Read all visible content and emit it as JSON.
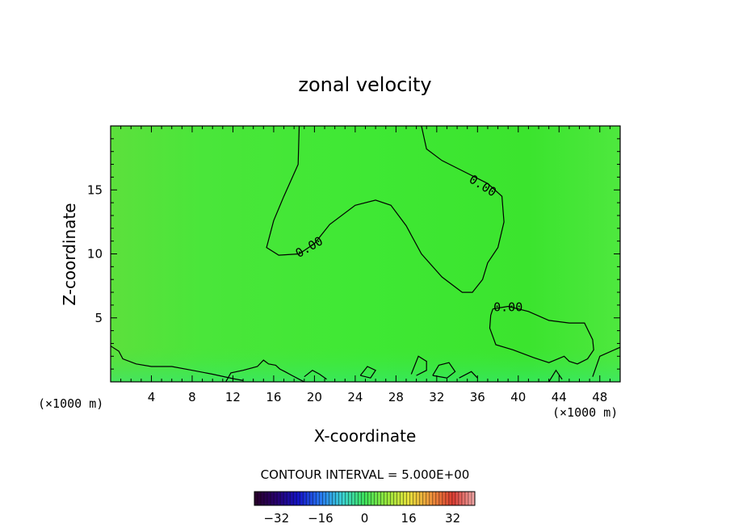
{
  "chart_data": {
    "type": "heatmap",
    "title": "zonal velocity",
    "xlabel": "X-coordinate",
    "ylabel": "Z-coordinate",
    "x_unit": "(×1000 m)",
    "z_unit": "(×1000 m)",
    "xlim": [
      0,
      50
    ],
    "ylim": [
      0,
      20
    ],
    "x_ticks": [
      "4",
      "8",
      "12",
      "16",
      "20",
      "24",
      "28",
      "32",
      "36",
      "40",
      "44",
      "48"
    ],
    "y_ticks": [
      "5",
      "10",
      "15"
    ],
    "contour_label": "0.00",
    "contour_interval_text": "CONTOUR INTERVAL = 5.000E+00",
    "colorbar_ticks": [
      "−32",
      "−16",
      "0",
      "16",
      "32"
    ],
    "colorbar_range": [
      -40,
      40
    ],
    "field_level": 0,
    "contours": [
      {
        "level": 0,
        "points": [
          [
            18.5,
            20
          ],
          [
            18.4,
            17
          ],
          [
            17,
            14.5
          ],
          [
            16,
            12.6
          ],
          [
            15.3,
            10.5
          ],
          [
            16.5,
            9.9
          ],
          [
            18.5,
            10
          ],
          [
            20,
            10.8
          ],
          [
            21.5,
            12.3
          ],
          [
            24,
            13.8
          ],
          [
            26,
            14.2
          ],
          [
            27.5,
            13.8
          ],
          [
            29,
            12.2
          ],
          [
            30.5,
            10
          ],
          [
            32.5,
            8.2
          ],
          [
            34.5,
            7
          ],
          [
            35.5,
            7
          ],
          [
            36.5,
            8
          ],
          [
            37,
            9.3
          ],
          [
            38,
            10.5
          ],
          [
            38.6,
            12.5
          ],
          [
            38.4,
            14.5
          ],
          [
            37,
            15.5
          ],
          [
            35,
            16.3
          ],
          [
            32.5,
            17.3
          ],
          [
            31,
            18.2
          ],
          [
            30.5,
            20
          ]
        ]
      },
      {
        "level": 0,
        "points": [
          [
            37.5,
            5.7
          ],
          [
            39,
            5.9
          ],
          [
            41,
            5.5
          ],
          [
            43,
            4.8
          ],
          [
            45,
            4.6
          ],
          [
            46.5,
            4.6
          ],
          [
            47.3,
            3.3
          ],
          [
            47.4,
            2.5
          ],
          [
            46.8,
            1.8
          ],
          [
            45.8,
            1.4
          ],
          [
            45,
            1.6
          ],
          [
            44.5,
            2
          ],
          [
            43,
            1.5
          ],
          [
            41.5,
            1.9
          ],
          [
            39.5,
            2.5
          ],
          [
            37.8,
            2.9
          ],
          [
            37.2,
            4.2
          ],
          [
            37.3,
            5.2
          ],
          [
            37.5,
            5.7
          ]
        ]
      },
      {
        "level": 0,
        "points": [
          [
            0,
            2.8
          ],
          [
            0.8,
            2.4
          ],
          [
            1.2,
            1.8
          ],
          [
            2.5,
            1.4
          ],
          [
            4,
            1.2
          ],
          [
            6,
            1.2
          ],
          [
            8,
            0.9
          ],
          [
            10,
            0.6
          ],
          [
            12,
            0.25
          ],
          [
            13,
            0.1
          ]
        ]
      },
      {
        "level": 0,
        "points": [
          [
            11.3,
            0
          ],
          [
            11.8,
            0.7
          ],
          [
            13,
            0.9
          ],
          [
            14.4,
            1.2
          ],
          [
            15,
            1.7
          ],
          [
            15.5,
            1.4
          ],
          [
            16.2,
            1.3
          ],
          [
            16.6,
            1
          ],
          [
            17.1,
            0.8
          ],
          [
            17.8,
            0.5
          ],
          [
            18.5,
            0.2
          ],
          [
            19,
            0
          ]
        ]
      },
      {
        "level": 0,
        "points": [
          [
            19,
            0.4
          ],
          [
            19.8,
            0.9
          ],
          [
            20.5,
            0.6
          ],
          [
            21.2,
            0.2
          ]
        ]
      },
      {
        "level": 0,
        "points": [
          [
            24.5,
            0.5
          ],
          [
            25.2,
            1.2
          ],
          [
            26,
            0.9
          ],
          [
            25.5,
            0.3
          ],
          [
            24.5,
            0.5
          ]
        ]
      },
      {
        "level": 0,
        "points": [
          [
            29.5,
            0.6
          ],
          [
            30.2,
            2
          ],
          [
            31,
            1.6
          ],
          [
            31,
            0.9
          ],
          [
            30,
            0.5
          ]
        ]
      },
      {
        "level": 0,
        "points": [
          [
            31.6,
            0.5
          ],
          [
            32.2,
            1.3
          ],
          [
            33.2,
            1.5
          ],
          [
            33.8,
            0.8
          ],
          [
            33,
            0.3
          ],
          [
            31.6,
            0.5
          ]
        ]
      },
      {
        "level": 0,
        "points": [
          [
            34.2,
            0.3
          ],
          [
            35.4,
            0.8
          ],
          [
            36,
            0.3
          ]
        ]
      },
      {
        "level": 0,
        "points": [
          [
            43,
            0
          ],
          [
            43.7,
            0.9
          ],
          [
            44.3,
            0.2
          ]
        ]
      },
      {
        "level": 0,
        "points": [
          [
            47.3,
            0.4
          ],
          [
            48,
            2
          ],
          [
            50,
            2.7
          ]
        ]
      }
    ],
    "contour_labels": [
      {
        "text": "0.00",
        "x": 19.5,
        "y": 10.5,
        "angle": -30
      },
      {
        "text": "0.00",
        "x": 36.5,
        "y": 15.3,
        "angle": 32
      },
      {
        "text": "0.00",
        "x": 39,
        "y": 5.8,
        "angle": 0
      }
    ]
  }
}
